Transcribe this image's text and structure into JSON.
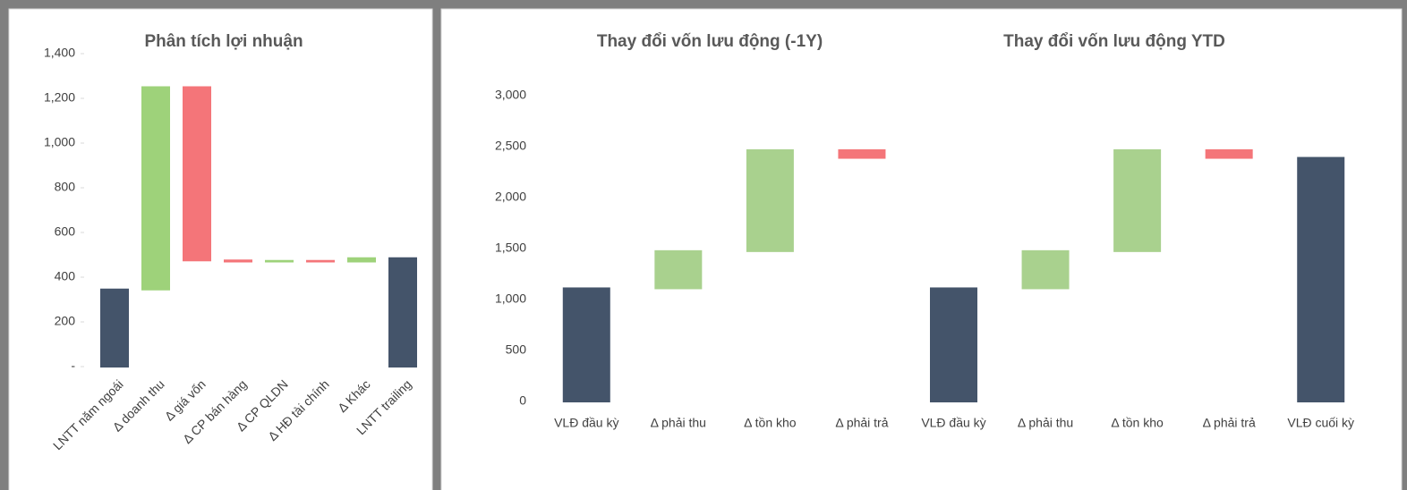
{
  "chart_data": [
    {
      "type": "waterfall",
      "title": "Phân tích lợi nhuận",
      "categories": [
        "LNTT năm ngoái",
        "Δ doanh thu",
        "Δ giá vốn",
        "Δ CP bán hàng",
        "Δ CP QLDN",
        "Δ HĐ tài chính",
        "Δ Khác",
        "LNTT trailing"
      ],
      "values": [
        345,
        905,
        -775,
        -5,
        3,
        -3,
        15,
        485
      ],
      "measure": [
        "absolute",
        "relative",
        "relative",
        "relative",
        "relative",
        "relative",
        "relative",
        "absolute"
      ],
      "colors": {
        "absolute": "#44546a",
        "increase": "#9ed27a",
        "decrease": "#f47579"
      },
      "ylim": [
        0,
        1400
      ],
      "yticks": [
        {
          "value": 0,
          "label": "-"
        },
        200,
        400,
        600,
        800,
        {
          "value": 1000,
          "label": "1,000"
        },
        {
          "value": 1200,
          "label": "1,200"
        },
        {
          "value": 1400,
          "label": "1,400"
        }
      ],
      "rotated_labels": true
    },
    {
      "type": "waterfall",
      "titles": [
        "Thay đổi vốn lưu động (-1Y)",
        "Thay đổi vốn lưu động YTD"
      ],
      "categories": [
        "VLĐ đầu kỳ",
        "Δ phải thu",
        "Δ tồn kho",
        "Δ phải trả",
        "VLĐ đầu kỳ",
        "Δ phải thu",
        "Δ tồn kho",
        "Δ phải trả",
        "VLĐ cuối kỳ"
      ],
      "values": [
        1110,
        365,
        990,
        -75,
        1110,
        365,
        990,
        -75,
        2390
      ],
      "measure": [
        "absolute",
        "relative",
        "relative",
        "relative",
        "absolute",
        "relative",
        "relative",
        "relative",
        "absolute"
      ],
      "colors": {
        "absolute": "#44546a",
        "increase": "#a9d18e",
        "decrease": "#f47579"
      },
      "ylim": [
        0,
        3000
      ],
      "yticks": [
        0,
        500,
        {
          "value": 1000,
          "label": "1,000"
        },
        {
          "value": 1500,
          "label": "1,500"
        },
        {
          "value": 2000,
          "label": "2,000"
        },
        {
          "value": 2500,
          "label": "2,500"
        },
        {
          "value": 3000,
          "label": "3,000"
        }
      ],
      "rotated_labels": false
    }
  ]
}
